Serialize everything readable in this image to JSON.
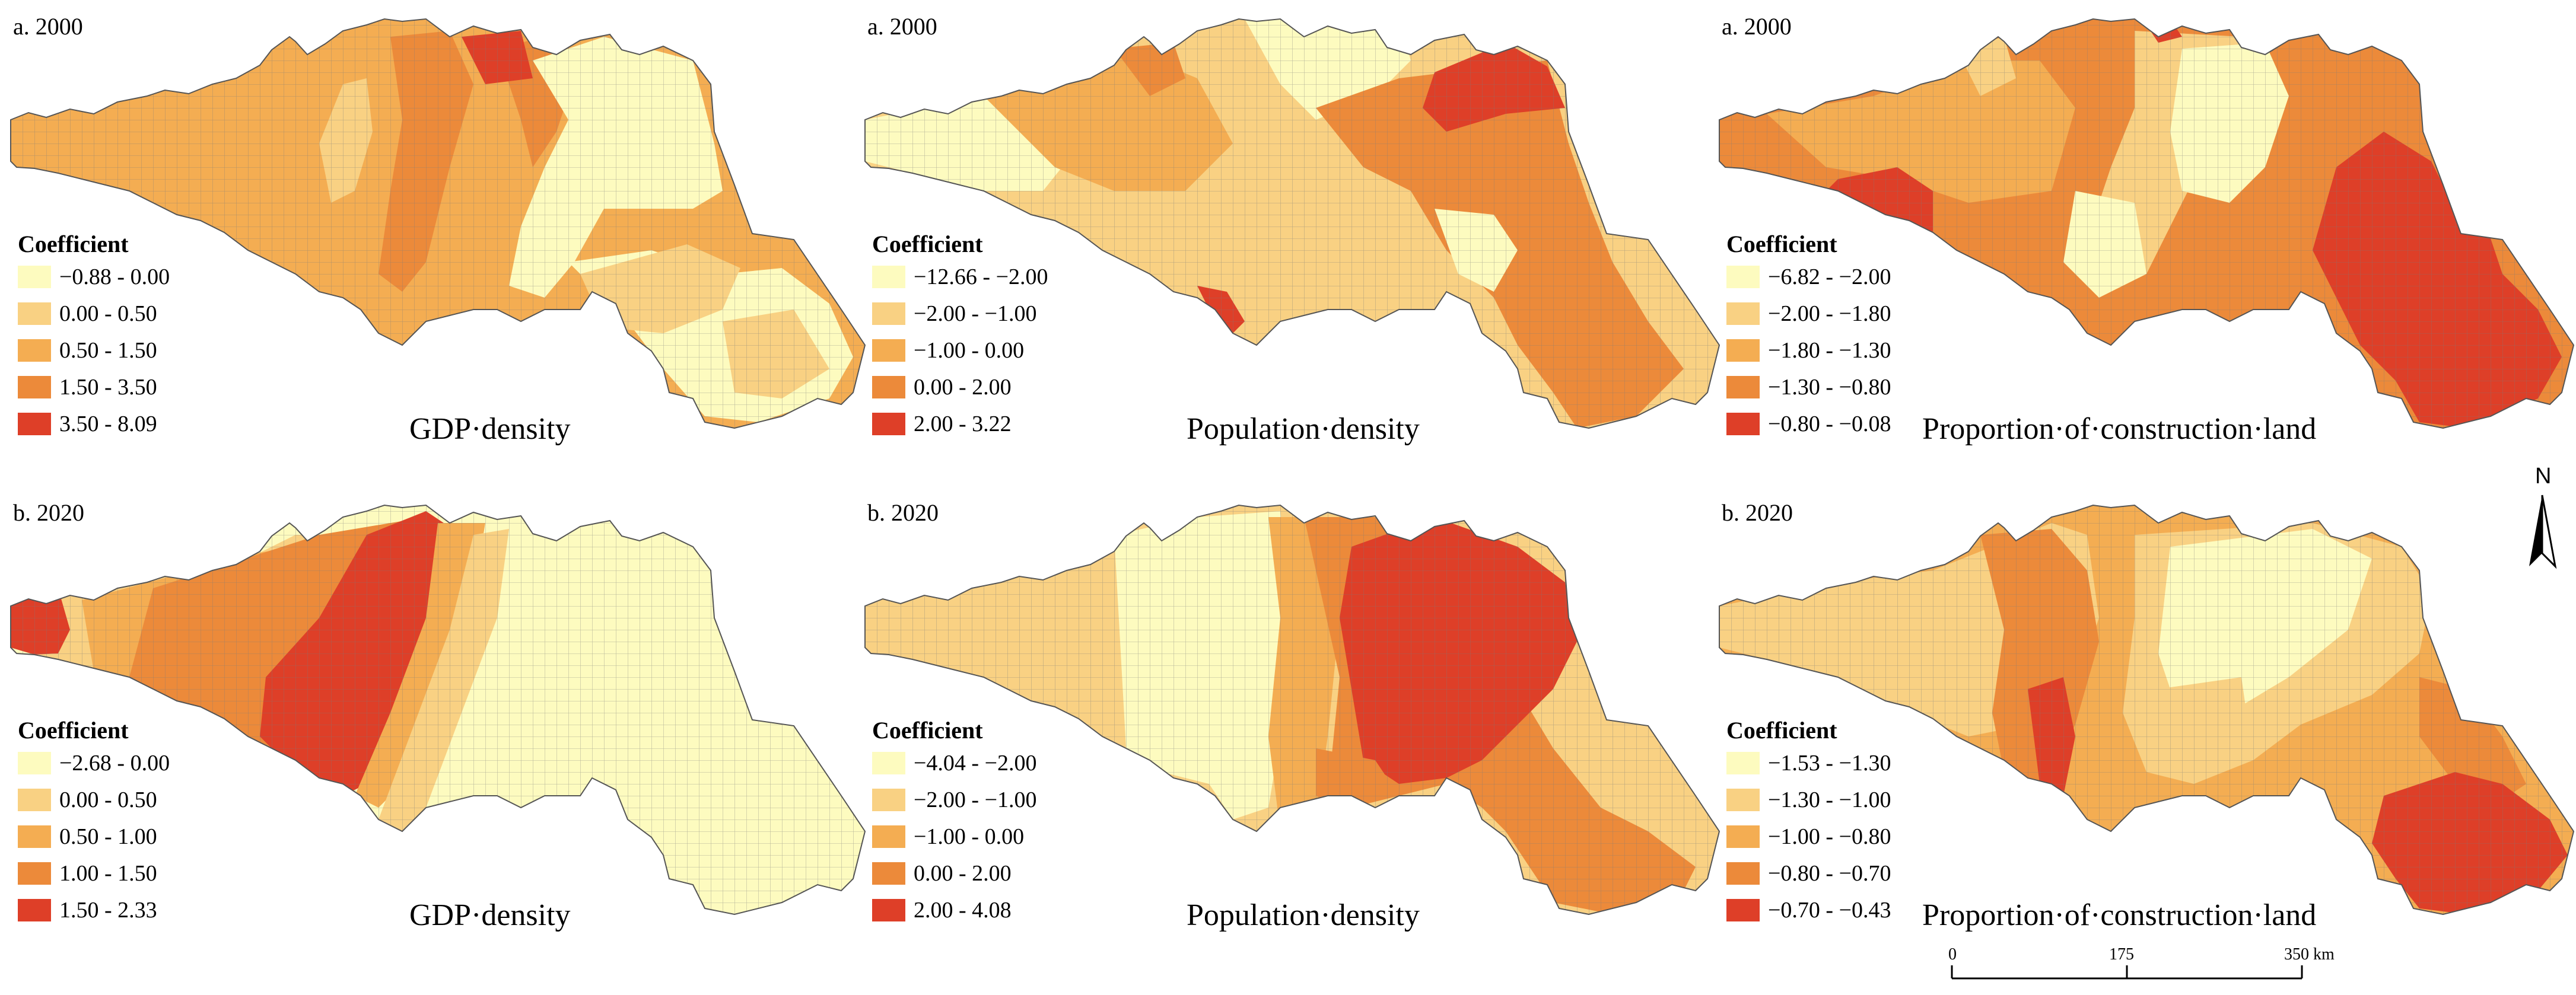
{
  "colors": {
    "c1": "#fdfbbf",
    "c2": "#f9d183",
    "c3": "#f4ad52",
    "c4": "#ec8a3a",
    "c5": "#de3f28",
    "grid": "#7a7a7a",
    "outline": "#555555"
  },
  "legend_title": "Coefficient",
  "maps": [
    {
      "caption": "a. 2000",
      "title": "GDP·density",
      "legend": [
        "−0.88 - 0.00",
        "0.00 - 0.50",
        "0.50 - 1.50",
        "1.50 - 3.50",
        "3.50 - 8.09"
      ]
    },
    {
      "caption": "a. 2000",
      "title": "Population·density",
      "legend": [
        "−12.66 - −2.00",
        "−2.00 - −1.00",
        "−1.00 - 0.00",
        "0.00 - 2.00",
        "2.00 - 3.22"
      ]
    },
    {
      "caption": "a. 2000",
      "title": "Proportion·of·construction·land",
      "legend": [
        "−6.82 - −2.00",
        "−2.00 - −1.80",
        "−1.80 - −1.30",
        "−1.30 - −0.80",
        "−0.80 - −0.08"
      ]
    },
    {
      "caption": "b. 2020",
      "title": "GDP·density",
      "legend": [
        "−2.68 - 0.00",
        "0.00 - 0.50",
        "0.50 - 1.00",
        "1.00 - 1.50",
        "1.50 - 2.33"
      ]
    },
    {
      "caption": "b. 2020",
      "title": "Population·density",
      "legend": [
        "−4.04 - −2.00",
        "−2.00 - −1.00",
        "−1.00 - 0.00",
        "0.00 - 2.00",
        "2.00 - 4.08"
      ]
    },
    {
      "caption": "b. 2020",
      "title": "Proportion·of·construction·land",
      "legend": [
        "−1.53 - −1.30",
        "−1.30 - −1.00",
        "−1.00 - −0.80",
        "−0.80 - −0.70",
        "−0.70 - −0.43"
      ]
    }
  ],
  "north_arrow": {
    "label": "N"
  },
  "scale_bar": {
    "ticks": [
      "0",
      "175",
      "350 km"
    ]
  }
}
